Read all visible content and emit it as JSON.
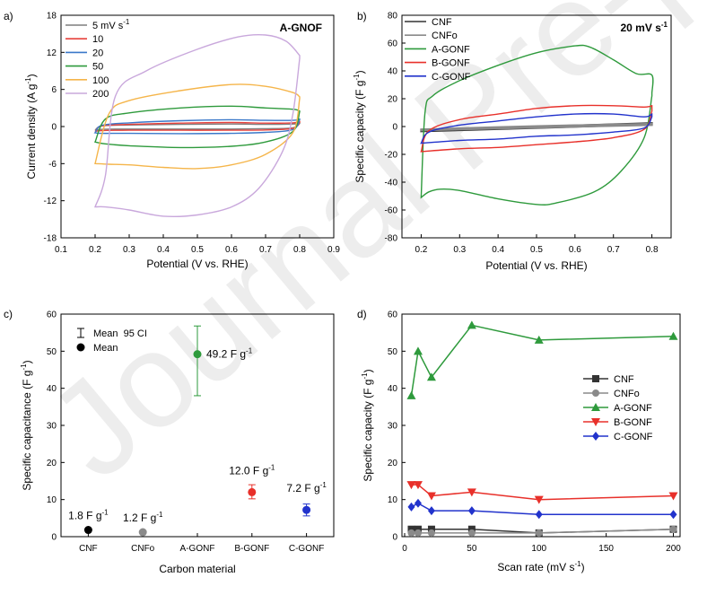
{
  "watermark": "Journal Pre-proof",
  "chart_data": [
    {
      "panel": "a)",
      "type": "line",
      "title": "A-GNOF",
      "xlabel": "Potential (V vs. RHE)",
      "ylabel": "Current density (A g-1)",
      "xlim": [
        0.1,
        0.9
      ],
      "ylim": [
        -18,
        18
      ],
      "xticks": [
        0.1,
        0.2,
        0.3,
        0.4,
        0.5,
        0.6,
        0.7,
        0.8,
        0.9
      ],
      "yticks": [
        -18,
        -12,
        -6,
        0,
        6,
        12,
        18
      ],
      "legend": "top-left",
      "series": [
        {
          "name": "5 mV s-1",
          "color": "#7f7f7f",
          "upper": [
            [
              0.2,
              -0.6
            ],
            [
              0.22,
              0.1
            ],
            [
              0.3,
              0.25
            ],
            [
              0.45,
              0.35
            ],
            [
              0.6,
              0.4
            ],
            [
              0.7,
              0.35
            ],
            [
              0.78,
              0.4
            ],
            [
              0.8,
              0.6
            ]
          ],
          "lower": [
            [
              0.8,
              0.5
            ],
            [
              0.78,
              -0.2
            ],
            [
              0.7,
              -0.35
            ],
            [
              0.6,
              -0.4
            ],
            [
              0.45,
              -0.4
            ],
            [
              0.3,
              -0.4
            ],
            [
              0.22,
              -0.45
            ],
            [
              0.2,
              -0.6
            ]
          ]
        },
        {
          "name": "10",
          "color": "#e8413c",
          "upper": [
            [
              0.2,
              -0.8
            ],
            [
              0.22,
              0.1
            ],
            [
              0.3,
              0.35
            ],
            [
              0.45,
              0.55
            ],
            [
              0.6,
              0.65
            ],
            [
              0.7,
              0.55
            ],
            [
              0.78,
              0.6
            ],
            [
              0.8,
              0.8
            ]
          ],
          "lower": [
            [
              0.8,
              0.7
            ],
            [
              0.78,
              -0.3
            ],
            [
              0.7,
              -0.55
            ],
            [
              0.6,
              -0.6
            ],
            [
              0.45,
              -0.6
            ],
            [
              0.3,
              -0.6
            ],
            [
              0.22,
              -0.65
            ],
            [
              0.2,
              -0.8
            ]
          ]
        },
        {
          "name": "20",
          "color": "#3a78c9",
          "upper": [
            [
              0.2,
              -1.0
            ],
            [
              0.22,
              0.2
            ],
            [
              0.3,
              0.6
            ],
            [
              0.45,
              0.95
            ],
            [
              0.6,
              1.1
            ],
            [
              0.7,
              1.0
            ],
            [
              0.78,
              1.0
            ],
            [
              0.8,
              1.2
            ]
          ],
          "lower": [
            [
              0.8,
              1.1
            ],
            [
              0.78,
              -0.5
            ],
            [
              0.7,
              -0.95
            ],
            [
              0.6,
              -1.1
            ],
            [
              0.45,
              -1.15
            ],
            [
              0.3,
              -1.1
            ],
            [
              0.22,
              -1.1
            ],
            [
              0.2,
              -1.0
            ]
          ]
        },
        {
          "name": "50",
          "color": "#2e9a3c",
          "upper": [
            [
              0.2,
              -2.5
            ],
            [
              0.23,
              1.2
            ],
            [
              0.3,
              2.2
            ],
            [
              0.45,
              3.0
            ],
            [
              0.6,
              3.3
            ],
            [
              0.7,
              3.0
            ],
            [
              0.78,
              2.8
            ],
            [
              0.8,
              2.5
            ]
          ],
          "lower": [
            [
              0.8,
              2.4
            ],
            [
              0.78,
              -0.8
            ],
            [
              0.7,
              -2.5
            ],
            [
              0.6,
              -3.2
            ],
            [
              0.45,
              -3.4
            ],
            [
              0.3,
              -3.1
            ],
            [
              0.23,
              -2.8
            ],
            [
              0.2,
              -2.5
            ]
          ]
        },
        {
          "name": "100",
          "color": "#f5b54a",
          "upper": [
            [
              0.2,
              -6.0
            ],
            [
              0.24,
              2.0
            ],
            [
              0.3,
              4.2
            ],
            [
              0.45,
              5.8
            ],
            [
              0.6,
              6.8
            ],
            [
              0.7,
              6.5
            ],
            [
              0.78,
              5.5
            ],
            [
              0.8,
              4.8
            ]
          ],
          "lower": [
            [
              0.8,
              4.5
            ],
            [
              0.78,
              -1.0
            ],
            [
              0.7,
              -4.5
            ],
            [
              0.6,
              -6.2
            ],
            [
              0.5,
              -6.8
            ],
            [
              0.4,
              -6.6
            ],
            [
              0.3,
              -6.2
            ],
            [
              0.24,
              -6.1
            ],
            [
              0.2,
              -6.0
            ]
          ]
        },
        {
          "name": "200",
          "color": "#c9a8dc",
          "upper": [
            [
              0.2,
              -13.0
            ],
            [
              0.23,
              -8
            ],
            [
              0.26,
              5.0
            ],
            [
              0.35,
              9.0
            ],
            [
              0.5,
              12.5
            ],
            [
              0.62,
              14.5
            ],
            [
              0.7,
              14.8
            ],
            [
              0.76,
              13.8
            ],
            [
              0.8,
              11.5
            ]
          ],
          "lower": [
            [
              0.8,
              11.0
            ],
            [
              0.78,
              2.0
            ],
            [
              0.75,
              -4.0
            ],
            [
              0.68,
              -10.0
            ],
            [
              0.6,
              -13.0
            ],
            [
              0.5,
              -14.3
            ],
            [
              0.4,
              -14.5
            ],
            [
              0.3,
              -13.5
            ],
            [
              0.23,
              -13.0
            ],
            [
              0.2,
              -13.0
            ]
          ]
        }
      ]
    },
    {
      "panel": "b)",
      "type": "line",
      "title": "20 mV s-1",
      "xlabel": "Potential (V vs. RHE)",
      "ylabel": "Specific capacity (F g-1)",
      "xlim": [
        0.15,
        0.85
      ],
      "ylim": [
        -80,
        80
      ],
      "xticks": [
        0.2,
        0.3,
        0.4,
        0.5,
        0.6,
        0.7,
        0.8
      ],
      "yticks": [
        -80,
        -60,
        -40,
        -20,
        0,
        20,
        40,
        60,
        80
      ],
      "legend": "top-left",
      "series": [
        {
          "name": "CNF",
          "color": "#333333",
          "upper": [
            [
              0.2,
              -2.5
            ],
            [
              0.5,
              0.0
            ],
            [
              0.8,
              2.5
            ]
          ],
          "lower": [
            [
              0.8,
              1.5
            ],
            [
              0.5,
              -1.0
            ],
            [
              0.2,
              -3.5
            ]
          ]
        },
        {
          "name": "CNFo",
          "color": "#8a8a8a",
          "upper": [
            [
              0.2,
              -2.0
            ],
            [
              0.5,
              0.3
            ],
            [
              0.8,
              2.0
            ]
          ],
          "lower": [
            [
              0.8,
              1.0
            ],
            [
              0.5,
              -0.8
            ],
            [
              0.2,
              -2.8
            ]
          ]
        },
        {
          "name": "A-GONF",
          "color": "#2e9a3c",
          "upper": [
            [
              0.2,
              -51
            ],
            [
              0.21,
              10
            ],
            [
              0.23,
              22
            ],
            [
              0.3,
              33
            ],
            [
              0.4,
              44
            ],
            [
              0.5,
              53
            ],
            [
              0.6,
              58
            ],
            [
              0.64,
              57
            ],
            [
              0.7,
              48
            ],
            [
              0.76,
              38
            ],
            [
              0.8,
              37
            ],
            [
              0.8,
              24
            ]
          ],
          "lower": [
            [
              0.8,
              22
            ],
            [
              0.78,
              -8
            ],
            [
              0.72,
              -32
            ],
            [
              0.65,
              -47
            ],
            [
              0.55,
              -55
            ],
            [
              0.5,
              -56
            ],
            [
              0.4,
              -52
            ],
            [
              0.3,
              -46
            ],
            [
              0.25,
              -45
            ],
            [
              0.22,
              -47
            ],
            [
              0.2,
              -51
            ]
          ]
        },
        {
          "name": "B-GONF",
          "color": "#e8302a",
          "upper": [
            [
              0.2,
              -18
            ],
            [
              0.22,
              -3
            ],
            [
              0.3,
              5
            ],
            [
              0.4,
              9
            ],
            [
              0.5,
              13
            ],
            [
              0.6,
              15
            ],
            [
              0.7,
              15
            ],
            [
              0.78,
              14
            ],
            [
              0.8,
              15
            ]
          ],
          "lower": [
            [
              0.8,
              11
            ],
            [
              0.78,
              -2
            ],
            [
              0.7,
              -8
            ],
            [
              0.6,
              -11
            ],
            [
              0.5,
              -13
            ],
            [
              0.4,
              -15
            ],
            [
              0.3,
              -16
            ],
            [
              0.2,
              -18
            ]
          ]
        },
        {
          "name": "C-GONF",
          "color": "#2233cc",
          "upper": [
            [
              0.2,
              -12
            ],
            [
              0.22,
              -4
            ],
            [
              0.3,
              1
            ],
            [
              0.4,
              4
            ],
            [
              0.5,
              7
            ],
            [
              0.6,
              9
            ],
            [
              0.7,
              9
            ],
            [
              0.78,
              7
            ],
            [
              0.8,
              9
            ]
          ],
          "lower": [
            [
              0.8,
              7
            ],
            [
              0.78,
              -1
            ],
            [
              0.7,
              -4
            ],
            [
              0.6,
              -6
            ],
            [
              0.5,
              -7
            ],
            [
              0.4,
              -9
            ],
            [
              0.3,
              -10
            ],
            [
              0.2,
              -12
            ]
          ]
        }
      ]
    },
    {
      "panel": "c)",
      "type": "scatter",
      "xlabel": "Carbon material",
      "ylabel": "Specific capacitance (F g-1)",
      "ylim": [
        0,
        60
      ],
      "yticks": [
        0,
        10,
        20,
        30,
        40,
        50,
        60
      ],
      "categories": [
        "CNF",
        "CNFo",
        "A-GONF",
        "B-GONF",
        "C-GONF"
      ],
      "values": [
        1.8,
        1.2,
        49.2,
        12.0,
        7.2
      ],
      "ci_low": [
        1.8,
        1.2,
        38,
        10.2,
        5.6
      ],
      "ci_high": [
        1.8,
        1.2,
        56.8,
        14,
        8.8
      ],
      "labels": [
        "1.8 F g-1",
        "1.2 F g-1",
        "49.2 F g-1",
        "12.0 F g-1",
        "7.2 F g-1"
      ],
      "colors": [
        "#000000",
        "#8a8a8a",
        "#2e9a3c",
        "#e8302a",
        "#2233cc"
      ],
      "legend_items": [
        "Mean  95 CI",
        "Mean"
      ],
      "legend": "top-left"
    },
    {
      "panel": "d)",
      "type": "line",
      "xlabel": "Scan rate (mV s-1)",
      "ylabel": "Specific capacity (F g-1)",
      "xlim": [
        0,
        200
      ],
      "ylim": [
        0,
        60
      ],
      "xticks": [
        0,
        50,
        100,
        150,
        200
      ],
      "yticks": [
        0,
        10,
        20,
        30,
        40,
        50,
        60
      ],
      "x": [
        5,
        10,
        20,
        50,
        100,
        200
      ],
      "legend": "right",
      "series": [
        {
          "name": "CNF",
          "color": "#333333",
          "marker": "square",
          "values": [
            2,
            2,
            2,
            2,
            1,
            2
          ]
        },
        {
          "name": "CNFo",
          "color": "#8a8a8a",
          "marker": "circle",
          "values": [
            1,
            1,
            1,
            1,
            1,
            2
          ]
        },
        {
          "name": "A-GONF",
          "color": "#2e9a3c",
          "marker": "triangle-up",
          "values": [
            38,
            50,
            43,
            57,
            53,
            54
          ]
        },
        {
          "name": "B-GONF",
          "color": "#e8302a",
          "marker": "triangle-down",
          "values": [
            14,
            14,
            11,
            12,
            10,
            11
          ]
        },
        {
          "name": "C-GONF",
          "color": "#2233cc",
          "marker": "diamond",
          "values": [
            8,
            9,
            7,
            7,
            6,
            6
          ]
        }
      ]
    }
  ]
}
